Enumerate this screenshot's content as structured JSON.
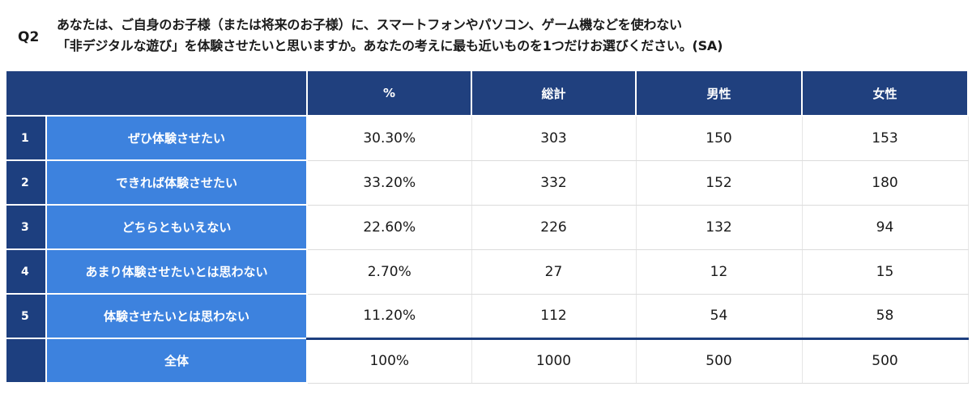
{
  "question": {
    "id": "Q2",
    "line1": "あなたは、ご自身のお子様（または将来のお子様）に、スマートフォンやパソコン、ゲーム機などを使わない",
    "line2": "「非デジタルな遊び」を体験させたいと思いますか。あなたの考えに最も近いものを1つだけお選びください。(SA)"
  },
  "table": {
    "headers": {
      "percent": "%",
      "total": "総計",
      "male": "男性",
      "female": "女性"
    },
    "rows": [
      {
        "no": "1",
        "label": "ぜひ体験させたい",
        "percent": "30.30%",
        "total": "303",
        "male": "150",
        "female": "153"
      },
      {
        "no": "2",
        "label": "できれば体験させたい",
        "percent": "33.20%",
        "total": "332",
        "male": "152",
        "female": "180"
      },
      {
        "no": "3",
        "label": "どちらともいえない",
        "percent": "22.60%",
        "total": "226",
        "male": "132",
        "female": "94"
      },
      {
        "no": "4",
        "label": "あまり体験させたいとは思わない",
        "percent": "2.70%",
        "total": "27",
        "male": "12",
        "female": "15"
      },
      {
        "no": "5",
        "label": "体験させたいとは思わない",
        "percent": "11.20%",
        "total": "112",
        "male": "54",
        "female": "58"
      }
    ],
    "total_row": {
      "label": "全体",
      "percent": "100%",
      "total": "1000",
      "male": "500",
      "female": "500"
    }
  },
  "colors": {
    "header_bg": "#20407e",
    "number_cell_bg": "#1d3f7f",
    "label_cell_bg": "#3d82de",
    "value_cell_bg": "#ffffff"
  }
}
